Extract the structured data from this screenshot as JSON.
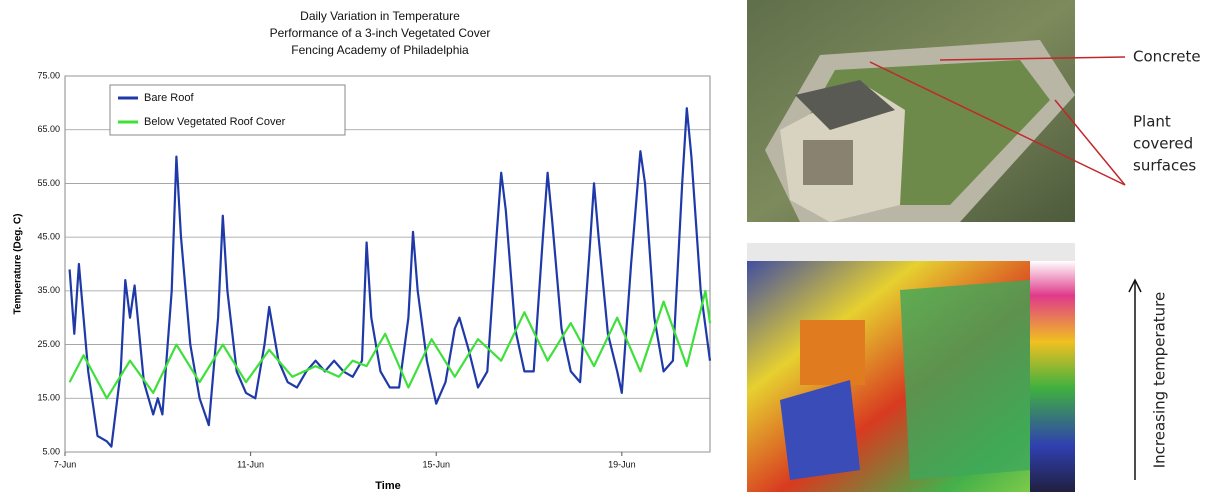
{
  "chart_data": {
    "type": "line",
    "title_lines": [
      "Daily Variation in Temperature",
      "Performance of a 3-inch Vegetated Cover",
      "Fencing Academy of Philadelphia"
    ],
    "xlabel": "Time",
    "ylabel": "Temperature (Deg. C)",
    "xlim": [
      7,
      20.9
    ],
    "ylim": [
      5,
      75
    ],
    "xticks": [
      {
        "value": 7,
        "label": "7-Jun"
      },
      {
        "value": 11,
        "label": "11-Jun"
      },
      {
        "value": 15,
        "label": "15-Jun"
      },
      {
        "value": 19,
        "label": "19-Jun"
      }
    ],
    "yticks": [
      {
        "value": 5,
        "label": "5.00"
      },
      {
        "value": 15,
        "label": "15.00"
      },
      {
        "value": 25,
        "label": "25.00"
      },
      {
        "value": 35,
        "label": "35.00"
      },
      {
        "value": 45,
        "label": "45.00"
      },
      {
        "value": 55,
        "label": "55.00"
      },
      {
        "value": 65,
        "label": "65.00"
      },
      {
        "value": 75,
        "label": "75.00"
      }
    ],
    "grid": true,
    "series": [
      {
        "name": "Bare Roof",
        "color": "#1f3aa8",
        "x": [
          7.1,
          7.2,
          7.3,
          7.5,
          7.7,
          7.9,
          8.0,
          8.2,
          8.3,
          8.4,
          8.5,
          8.7,
          8.9,
          9.0,
          9.1,
          9.3,
          9.4,
          9.5,
          9.7,
          9.9,
          10.1,
          10.3,
          10.4,
          10.5,
          10.7,
          10.9,
          11.1,
          11.3,
          11.4,
          11.6,
          11.8,
          12.0,
          12.2,
          12.4,
          12.6,
          12.8,
          13.0,
          13.2,
          13.4,
          13.5,
          13.6,
          13.8,
          14.0,
          14.2,
          14.4,
          14.5,
          14.6,
          14.8,
          15.0,
          15.2,
          15.4,
          15.5,
          15.7,
          15.9,
          16.1,
          16.3,
          16.4,
          16.5,
          16.7,
          16.9,
          17.1,
          17.3,
          17.4,
          17.5,
          17.7,
          17.9,
          18.1,
          18.3,
          18.4,
          18.5,
          18.7,
          18.9,
          19.0,
          19.2,
          19.4,
          19.5,
          19.7,
          19.9,
          20.1,
          20.3,
          20.4,
          20.5,
          20.7,
          20.9
        ],
        "values": [
          39,
          27,
          40,
          20,
          8,
          7,
          6,
          20,
          37,
          30,
          36,
          18,
          12,
          15,
          12,
          35,
          60,
          45,
          25,
          15,
          10,
          30,
          49,
          35,
          20,
          16,
          15,
          25,
          32,
          22,
          18,
          17,
          20,
          22,
          20,
          22,
          20,
          19,
          22,
          44,
          30,
          20,
          17,
          17,
          30,
          46,
          35,
          22,
          14,
          18,
          28,
          30,
          24,
          17,
          20,
          45,
          57,
          50,
          28,
          20,
          20,
          45,
          57,
          48,
          28,
          20,
          18,
          42,
          55,
          45,
          27,
          20,
          16,
          40,
          61,
          55,
          30,
          20,
          22,
          55,
          69,
          60,
          35,
          22
        ]
      },
      {
        "name": "Below Vegetated Roof Cover",
        "color": "#3ee03a",
        "x": [
          7.1,
          7.4,
          7.9,
          8.4,
          8.9,
          9.4,
          9.9,
          10.4,
          10.9,
          11.4,
          11.9,
          12.4,
          12.9,
          13.2,
          13.5,
          13.9,
          14.4,
          14.9,
          15.4,
          15.9,
          16.4,
          16.9,
          17.4,
          17.9,
          18.4,
          18.9,
          19.4,
          19.9,
          20.4,
          20.8,
          20.9
        ],
        "values": [
          18,
          23,
          15,
          22,
          16,
          25,
          18,
          25,
          18,
          24,
          19,
          21,
          19,
          22,
          21,
          27,
          17,
          26,
          19,
          26,
          22,
          31,
          22,
          29,
          21,
          30,
          20,
          33,
          21,
          35,
          29
        ]
      }
    ],
    "legend": "top-left"
  },
  "photos": {
    "concrete_label": "Concrete",
    "plant_label": [
      "Plant",
      "covered",
      "surfaces"
    ],
    "thermal_label": "Increasing temperature"
  }
}
